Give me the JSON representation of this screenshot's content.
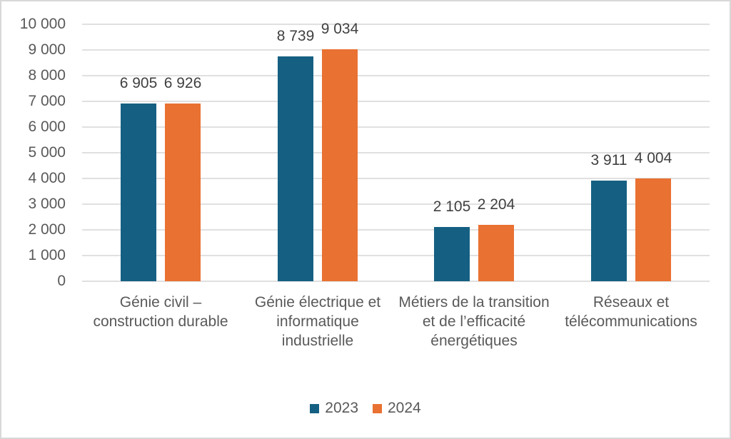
{
  "chart_data": {
    "type": "bar",
    "categories": [
      "Génie civil – construction durable",
      "Génie électrique et informatique industrielle",
      "Métiers de la transition et de l’efficacité énergétiques",
      "Réseaux et télécommunications"
    ],
    "series": [
      {
        "name": "2023",
        "color": "#156082",
        "values": [
          6905,
          8739,
          2105,
          3911
        ],
        "value_labels": [
          "6 905",
          "8 739",
          "2 105",
          "3 911"
        ]
      },
      {
        "name": "2024",
        "color": "#E97132",
        "values": [
          6926,
          9034,
          2204,
          4004
        ],
        "value_labels": [
          "6 926",
          "9 034",
          "2 204",
          "4 004"
        ]
      }
    ],
    "ylim": [
      0,
      10000
    ],
    "ytick_interval": 1000,
    "ytick_labels": [
      "0",
      "1 000",
      "2 000",
      "3 000",
      "4 000",
      "5 000",
      "6 000",
      "7 000",
      "8 000",
      "9 000",
      "10 000"
    ],
    "grid": true,
    "legend_position": "bottom"
  },
  "colors": {
    "background": "#FFFFFF",
    "border": "#D8D8D8",
    "gridline": "#E0E0E0",
    "axis_text": "#595959",
    "category_text": "#595959",
    "value_label_text": "#404040",
    "legend_text": "#595959"
  }
}
